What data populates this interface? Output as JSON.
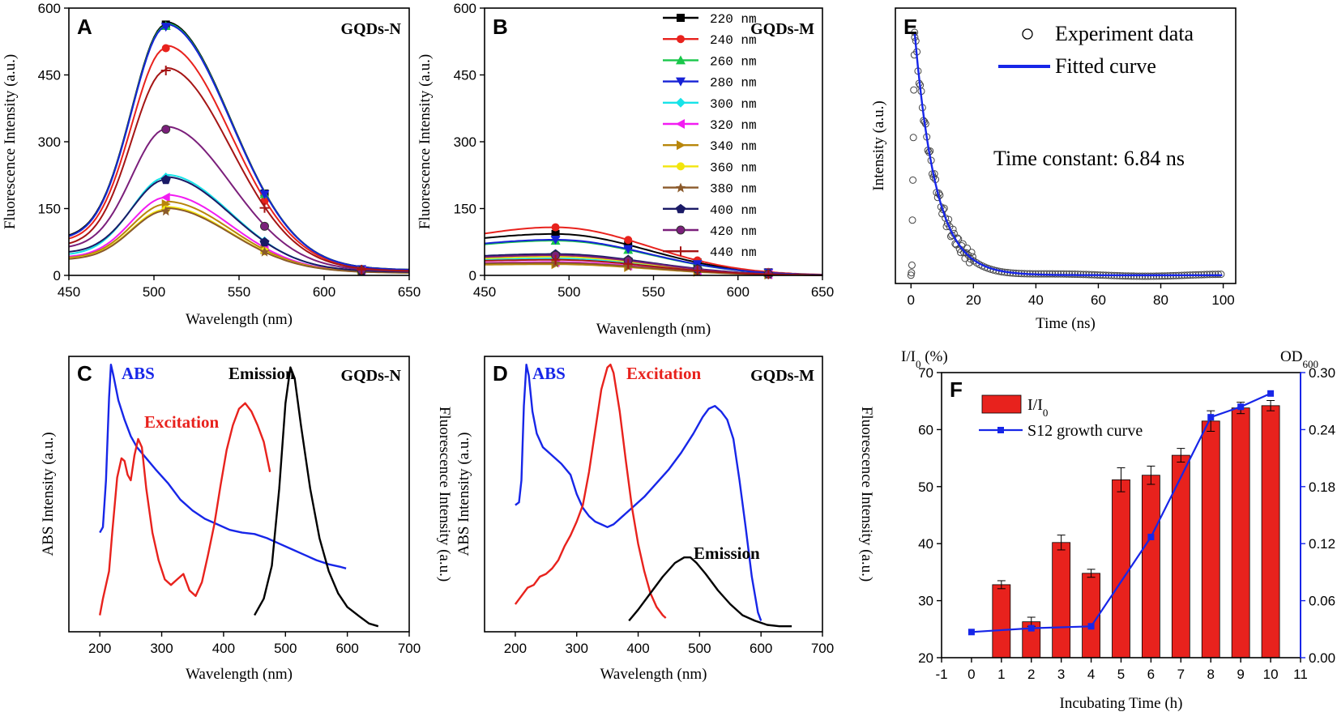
{
  "colors": {
    "series": [
      "#000000",
      "#e8221d",
      "#19c74a",
      "#1722d6",
      "#16e3e8",
      "#f21cf2",
      "#b8860b",
      "#f2e50c",
      "#8b5a2b",
      "#1a1a66",
      "#7b1f7b",
      "#a51515",
      "#4e86c2",
      "#2e8b2e"
    ],
    "blue": "#1726e8",
    "red": "#e8221d"
  },
  "chart_data": [
    {
      "id": "A",
      "type": "line",
      "panel_label": "A",
      "title": "GQDs-N",
      "xlabel": "Wavelength (nm)",
      "ylabel": "Fluorescence Intensity (a.u.)",
      "xlim": [
        450,
        650
      ],
      "ylim": [
        0,
        600
      ],
      "xticks": [
        450,
        500,
        550,
        600,
        650
      ],
      "yticks": [
        0,
        150,
        300,
        450,
        600
      ],
      "peak_x": 507,
      "series": [
        {
          "name": "220 nm",
          "peak": 563,
          "base": 82,
          "marker": "square"
        },
        {
          "name": "240 nm",
          "peak": 510,
          "base": 75,
          "marker": "circle"
        },
        {
          "name": "260 nm",
          "peak": 560,
          "base": 80,
          "marker": "triangle-up"
        },
        {
          "name": "280 nm",
          "peak": 558,
          "base": 80,
          "marker": "triangle-down"
        },
        {
          "name": "300 nm",
          "peak": 220,
          "base": 45,
          "marker": "diamond"
        },
        {
          "name": "320 nm",
          "peak": 175,
          "base": 40,
          "marker": "triangle-left"
        },
        {
          "name": "340 nm",
          "peak": 160,
          "base": 38,
          "marker": "triangle-right"
        },
        {
          "name": "360 nm",
          "peak": 148,
          "base": 36,
          "marker": "hexagon"
        },
        {
          "name": "380 nm",
          "peak": 145,
          "base": 35,
          "marker": "star"
        },
        {
          "name": "400 nm",
          "peak": 215,
          "base": 50,
          "marker": "pentagon"
        },
        {
          "name": "420 nm",
          "peak": 328,
          "base": 60,
          "marker": "circle-half"
        },
        {
          "name": "440 nm",
          "peak": 460,
          "base": 65,
          "marker": "plus"
        }
      ]
    },
    {
      "id": "B",
      "type": "line",
      "panel_label": "B",
      "title": "GQDs-M",
      "xlabel": "Wavenlength (nm)",
      "ylabel": "Fluorescence Intensity (a.u.)",
      "xlim": [
        450,
        650
      ],
      "ylim": [
        0,
        600
      ],
      "xticks": [
        450,
        500,
        550,
        600,
        650
      ],
      "yticks": [
        0,
        150,
        300,
        450,
        600
      ],
      "peak_x": 492,
      "legend": [
        "220 nm",
        "240 nm",
        "260 nm",
        "280 nm",
        "300 nm",
        "320 nm",
        "340 nm",
        "360 nm",
        "380 nm",
        "400 nm",
        "420 nm",
        "440 nm"
      ],
      "series": [
        {
          "name": "220 nm",
          "peak": 93,
          "base": 62
        },
        {
          "name": "240 nm",
          "peak": 108,
          "base": 60
        },
        {
          "name": "260 nm",
          "peak": 78,
          "base": 50
        },
        {
          "name": "280 nm",
          "peak": 80,
          "base": 52
        },
        {
          "name": "300 nm",
          "peak": 38,
          "base": 30
        },
        {
          "name": "320 nm",
          "peak": 30,
          "base": 25
        },
        {
          "name": "340 nm",
          "peak": 25,
          "base": 22
        },
        {
          "name": "360 nm",
          "peak": 42,
          "base": 30
        },
        {
          "name": "380 nm",
          "peak": 28,
          "base": 25
        },
        {
          "name": "400 nm",
          "peak": 48,
          "base": 35
        },
        {
          "name": "420 nm",
          "peak": 45,
          "base": 32
        },
        {
          "name": "440 nm",
          "peak": 35,
          "base": 28
        }
      ]
    },
    {
      "id": "C",
      "type": "line",
      "panel_label": "C",
      "title": "GQDs-N",
      "xlabel": "Wavelength (nm)",
      "ylabel": "ABS Intensity (a.u.)",
      "ylabel_right": "Fluorescence Intensity (a.u.)",
      "xlim": [
        150,
        700
      ],
      "ylim": [
        0,
        1
      ],
      "xticks": [
        200,
        300,
        400,
        500,
        600,
        700
      ],
      "labels": {
        "abs": "ABS",
        "excitation": "Excitation",
        "emission": "Emission"
      },
      "series": [
        {
          "name": "ABS",
          "points": [
            [
              200,
              0.36
            ],
            [
              205,
              0.38
            ],
            [
              210,
              0.55
            ],
            [
              215,
              0.85
            ],
            [
              218,
              0.97
            ],
            [
              222,
              0.93
            ],
            [
              230,
              0.84
            ],
            [
              240,
              0.77
            ],
            [
              250,
              0.71
            ],
            [
              260,
              0.67
            ],
            [
              275,
              0.63
            ],
            [
              290,
              0.59
            ],
            [
              310,
              0.54
            ],
            [
              330,
              0.48
            ],
            [
              350,
              0.44
            ],
            [
              370,
              0.41
            ],
            [
              390,
              0.39
            ],
            [
              410,
              0.37
            ],
            [
              430,
              0.36
            ],
            [
              450,
              0.355
            ],
            [
              470,
              0.34
            ],
            [
              490,
              0.32
            ],
            [
              510,
              0.3
            ],
            [
              530,
              0.28
            ],
            [
              550,
              0.26
            ],
            [
              570,
              0.245
            ],
            [
              590,
              0.235
            ],
            [
              598,
              0.23
            ]
          ]
        },
        {
          "name": "Excitation",
          "points": [
            [
              200,
              0.06
            ],
            [
              205,
              0.12
            ],
            [
              210,
              0.17
            ],
            [
              215,
              0.22
            ],
            [
              220,
              0.36
            ],
            [
              228,
              0.56
            ],
            [
              235,
              0.63
            ],
            [
              240,
              0.62
            ],
            [
              245,
              0.57
            ],
            [
              250,
              0.55
            ],
            [
              256,
              0.64
            ],
            [
              262,
              0.7
            ],
            [
              268,
              0.67
            ],
            [
              275,
              0.52
            ],
            [
              285,
              0.36
            ],
            [
              295,
              0.26
            ],
            [
              305,
              0.19
            ],
            [
              315,
              0.17
            ],
            [
              325,
              0.19
            ],
            [
              335,
              0.21
            ],
            [
              345,
              0.15
            ],
            [
              355,
              0.13
            ],
            [
              365,
              0.18
            ],
            [
              375,
              0.28
            ],
            [
              385,
              0.39
            ],
            [
              395,
              0.53
            ],
            [
              405,
              0.66
            ],
            [
              415,
              0.75
            ],
            [
              425,
              0.81
            ],
            [
              435,
              0.83
            ],
            [
              445,
              0.8
            ],
            [
              455,
              0.75
            ],
            [
              465,
              0.69
            ],
            [
              475,
              0.58
            ]
          ]
        },
        {
          "name": "Emission",
          "points": [
            [
              450,
              0.06
            ],
            [
              465,
              0.12
            ],
            [
              478,
              0.24
            ],
            [
              490,
              0.52
            ],
            [
              500,
              0.83
            ],
            [
              508,
              0.96
            ],
            [
              515,
              0.92
            ],
            [
              525,
              0.75
            ],
            [
              540,
              0.52
            ],
            [
              555,
              0.34
            ],
            [
              570,
              0.22
            ],
            [
              585,
              0.14
            ],
            [
              600,
              0.09
            ],
            [
              620,
              0.055
            ],
            [
              635,
              0.03
            ],
            [
              650,
              0.02
            ]
          ]
        }
      ]
    },
    {
      "id": "D",
      "type": "line",
      "panel_label": "D",
      "title": "GQDs-M",
      "xlabel": "Wavelength (nm)",
      "ylabel": "ABS Intensity (a.u.)",
      "ylabel_right": "Fluorescence Intensity (a.u.)",
      "xlim": [
        150,
        700
      ],
      "ylim": [
        0,
        1
      ],
      "xticks": [
        200,
        300,
        400,
        500,
        600,
        700
      ],
      "labels": {
        "abs": "ABS",
        "excitation": "Excitation",
        "emission": "Emission"
      },
      "series": [
        {
          "name": "ABS",
          "points": [
            [
              200,
              0.46
            ],
            [
              206,
              0.47
            ],
            [
              210,
              0.55
            ],
            [
              214,
              0.82
            ],
            [
              218,
              0.97
            ],
            [
              222,
              0.93
            ],
            [
              228,
              0.8
            ],
            [
              235,
              0.72
            ],
            [
              245,
              0.67
            ],
            [
              260,
              0.64
            ],
            [
              275,
              0.61
            ],
            [
              290,
              0.57
            ],
            [
              300,
              0.5
            ],
            [
              310,
              0.45
            ],
            [
              320,
              0.42
            ],
            [
              330,
              0.4
            ],
            [
              340,
              0.39
            ],
            [
              350,
              0.38
            ],
            [
              360,
              0.39
            ],
            [
              375,
              0.42
            ],
            [
              390,
              0.45
            ],
            [
              410,
              0.49
            ],
            [
              430,
              0.54
            ],
            [
              450,
              0.59
            ],
            [
              470,
              0.65
            ],
            [
              490,
              0.72
            ],
            [
              505,
              0.78
            ],
            [
              515,
              0.81
            ],
            [
              525,
              0.82
            ],
            [
              535,
              0.8
            ],
            [
              545,
              0.77
            ],
            [
              555,
              0.7
            ],
            [
              565,
              0.55
            ],
            [
              575,
              0.38
            ],
            [
              585,
              0.2
            ],
            [
              595,
              0.07
            ],
            [
              600,
              0.04
            ]
          ]
        },
        {
          "name": "Excitation",
          "points": [
            [
              200,
              0.1
            ],
            [
              210,
              0.13
            ],
            [
              220,
              0.16
            ],
            [
              230,
              0.17
            ],
            [
              240,
              0.2
            ],
            [
              250,
              0.21
            ],
            [
              260,
              0.23
            ],
            [
              270,
              0.26
            ],
            [
              280,
              0.31
            ],
            [
              290,
              0.35
            ],
            [
              300,
              0.4
            ],
            [
              310,
              0.46
            ],
            [
              320,
              0.58
            ],
            [
              330,
              0.73
            ],
            [
              340,
              0.88
            ],
            [
              350,
              0.96
            ],
            [
              355,
              0.97
            ],
            [
              360,
              0.94
            ],
            [
              370,
              0.8
            ],
            [
              380,
              0.62
            ],
            [
              390,
              0.45
            ],
            [
              400,
              0.32
            ],
            [
              410,
              0.22
            ],
            [
              420,
              0.14
            ],
            [
              430,
              0.09
            ],
            [
              440,
              0.06
            ],
            [
              445,
              0.05
            ]
          ]
        },
        {
          "name": "Emission",
          "points": [
            [
              385,
              0.04
            ],
            [
              400,
              0.08
            ],
            [
              420,
              0.14
            ],
            [
              440,
              0.2
            ],
            [
              460,
              0.25
            ],
            [
              475,
              0.27
            ],
            [
              485,
              0.27
            ],
            [
              495,
              0.25
            ],
            [
              510,
              0.21
            ],
            [
              530,
              0.15
            ],
            [
              550,
              0.1
            ],
            [
              570,
              0.06
            ],
            [
              590,
              0.04
            ],
            [
              610,
              0.025
            ],
            [
              630,
              0.02
            ],
            [
              650,
              0.02
            ]
          ]
        }
      ]
    },
    {
      "id": "E",
      "type": "scatter",
      "panel_label": "E",
      "xlabel": "Time (ns)",
      "ylabel": "Intensity (a.u.)",
      "xlim": [
        -5,
        104
      ],
      "ylim": [
        0,
        1.1
      ],
      "xticks": [
        0,
        20,
        40,
        60,
        80,
        100
      ],
      "legend": [
        "Experiment data",
        "Fitted curve"
      ],
      "annotation": "Time constant: 6.84 ns",
      "tau_ns": 6.84,
      "peak_time_ns": 1.2,
      "baseline": 0
    },
    {
      "id": "F",
      "type": "bar",
      "panel_label": "F",
      "xlabel": "Incubating Time (h)",
      "ylabel_left": "I/I0 (%)",
      "ylabel_right": "OD600",
      "xlim": [
        -1,
        11
      ],
      "ylim_left": [
        20,
        70
      ],
      "ylim_right": [
        0,
        0.3
      ],
      "xticks": [
        -1,
        0,
        1,
        2,
        3,
        4,
        5,
        6,
        7,
        8,
        9,
        10,
        11
      ],
      "yticks_left": [
        20,
        30,
        40,
        50,
        60,
        70
      ],
      "yticks_right": [
        "0.00",
        "0.06",
        "0.12",
        "0.18",
        "0.24",
        "0.30"
      ],
      "legend": [
        "I/I0",
        "S12 growth curve"
      ],
      "bars": {
        "x": [
          1,
          2,
          3,
          4,
          5,
          6,
          7,
          8,
          9,
          10
        ],
        "values": [
          32.8,
          26.3,
          40.2,
          34.8,
          51.2,
          52.0,
          55.5,
          61.5,
          63.8,
          64.2
        ],
        "errors": [
          0.7,
          0.8,
          1.3,
          0.7,
          2.1,
          1.6,
          1.2,
          1.8,
          1.0,
          0.9
        ]
      },
      "line": {
        "x": [
          0,
          2,
          4,
          6,
          8,
          9,
          10
        ],
        "values": [
          0.027,
          0.031,
          0.033,
          0.127,
          0.253,
          0.264,
          0.278
        ]
      }
    }
  ]
}
